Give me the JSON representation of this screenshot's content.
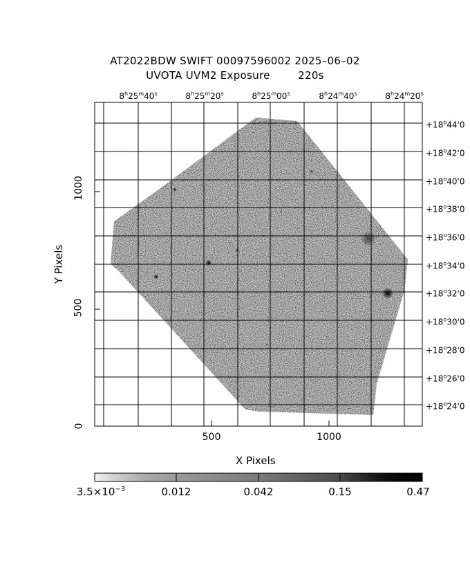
{
  "header": {
    "title_line1": "AT2022BDW SWIFT 00097596002 2025–06–02",
    "title_line2": "UVOTA UVM2 Exposure        220s"
  },
  "ra_ticks": [
    {
      "h": "8",
      "m": "25",
      "s": "40"
    },
    {
      "h": "8",
      "m": "25",
      "s": "20"
    },
    {
      "h": "8",
      "m": "25",
      "s": "00"
    },
    {
      "h": "8",
      "m": "24",
      "s": "40"
    },
    {
      "h": "8",
      "m": "24",
      "s": "20"
    }
  ],
  "dec_ticks": [
    {
      "d": "+18",
      "m": "44"
    },
    {
      "d": "+18",
      "m": "42"
    },
    {
      "d": "+18",
      "m": "40"
    },
    {
      "d": "+18",
      "m": "38"
    },
    {
      "d": "+18",
      "m": "36"
    },
    {
      "d": "+18",
      "m": "34"
    },
    {
      "d": "+18",
      "m": "32"
    },
    {
      "d": "+18",
      "m": "30"
    },
    {
      "d": "+18",
      "m": "28"
    },
    {
      "d": "+18",
      "m": "26"
    },
    {
      "d": "+18",
      "m": "24"
    }
  ],
  "x_axis": {
    "label": "X Pixels",
    "ticks": [
      "500",
      "1000"
    ]
  },
  "y_axis": {
    "label": "Y Pixels",
    "ticks": [
      "0",
      "500",
      "1000"
    ]
  },
  "colorbar": {
    "labels": [
      "3.5×10",
      "0.012",
      "0.042",
      "0.15",
      "0.47"
    ],
    "first_exponent": "−3"
  }
}
